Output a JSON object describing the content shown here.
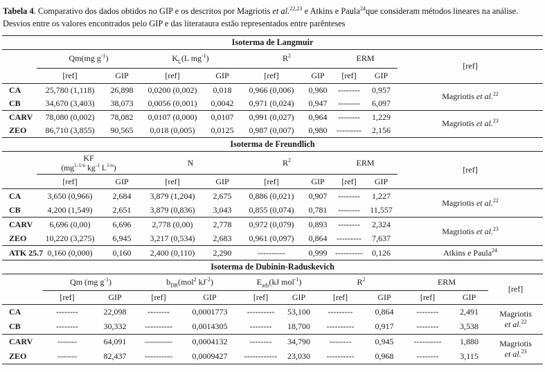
{
  "caption": {
    "segments": [
      {
        "t": "b",
        "v": "Tabela 4"
      },
      {
        "t": "span",
        "v": ". Comparativo dos dados obtidos no GIP e os descritos por Magriotis "
      },
      {
        "t": "i",
        "v": "et al."
      },
      {
        "t": "sup",
        "v": "22,23"
      },
      {
        "t": "span",
        "v": " e Atkins e Paula"
      },
      {
        "t": "sup",
        "v": "24"
      },
      {
        "t": "span",
        "v": "que consideram métodos lineares na análise. Desvios entre os valores encontrados pelo GIP e das literataura estão representados entre parênteses"
      }
    ]
  },
  "labels": {
    "ref": "[ref]",
    "gip": "GIP"
  },
  "sections": {
    "langmuir": {
      "title": "Isoterma de Langmuir",
      "groups": {
        "qm": [
          {
            "t": "span",
            "v": "Qm(mg g"
          },
          {
            "t": "sup",
            "v": "-1"
          },
          {
            "t": "span",
            "v": ")"
          }
        ],
        "kl": [
          {
            "t": "span",
            "v": "K"
          },
          {
            "t": "sub",
            "v": "L"
          },
          {
            "t": "span",
            "v": "(L mg"
          },
          {
            "t": "sup",
            "v": "-1"
          },
          {
            "t": "span",
            "v": ")"
          }
        ],
        "r2": [
          {
            "t": "span",
            "v": "R"
          },
          {
            "t": "sup",
            "v": "2"
          }
        ],
        "erm": [
          {
            "t": "span",
            "v": "ERM"
          }
        ]
      },
      "rows": [
        {
          "label": "CA",
          "cells": [
            "25,780 (1,118)",
            "26,898",
            "0,0200 (0,002)",
            "0,018",
            "0,966 (0,006)",
            "0,960",
            "--------",
            "0,957"
          ]
        },
        {
          "label": "CB",
          "cells": [
            "34,670 (3,403)",
            "38,073",
            "0,0056 (0,001)",
            "0,0042",
            "0,971 (0,024)",
            "0,947",
            "--------",
            "6,097"
          ]
        },
        {
          "label": "CARV",
          "cells": [
            "78,080 (0,002)",
            "78,082",
            "0,0107 (0,000)",
            "0,0107",
            "0,991 (0,027)",
            "0,964",
            "--------",
            "1,229"
          ]
        },
        {
          "label": "ZEO",
          "cells": [
            "86,710 (3,855)",
            "90,565",
            "0,018 (0,005)",
            "0,0125",
            "0,987 (0,007)",
            "0,980",
            "---------",
            "2,156"
          ]
        }
      ],
      "refs": [
        {
          "segments": [
            {
              "t": "span",
              "v": "Magriotis "
            },
            {
              "t": "i",
              "v": "et al."
            },
            {
              "t": "sup",
              "v": "22"
            }
          ]
        },
        {
          "segments": [
            {
              "t": "span",
              "v": "Magriotis "
            },
            {
              "t": "i",
              "v": "et al."
            },
            {
              "t": "sup",
              "v": "23"
            }
          ]
        }
      ]
    },
    "freundlich": {
      "title": "Isoterma de Freundlich",
      "groups": {
        "kf_line1": "KF",
        "kf_line2": [
          {
            "t": "span",
            "v": "(mg"
          },
          {
            "t": "sup",
            "v": "1-1/n"
          },
          {
            "t": "span",
            "v": " kg"
          },
          {
            "t": "sup",
            "v": "-1"
          },
          {
            "t": "span",
            "v": " L"
          },
          {
            "t": "sup",
            "v": "1/n"
          },
          {
            "t": "span",
            "v": ")"
          }
        ],
        "n": [
          {
            "t": "span",
            "v": "N"
          }
        ],
        "r2": [
          {
            "t": "span",
            "v": "R"
          },
          {
            "t": "sup",
            "v": "2"
          }
        ],
        "erm": [
          {
            "t": "span",
            "v": "ERM"
          }
        ]
      },
      "rows": [
        {
          "label": "CA",
          "cells": [
            "3,650 (0,966)",
            "2,684",
            "3,879 (1,204)",
            "2,675",
            "0,886 (0,021)",
            "0,907",
            "--------",
            "1,227"
          ]
        },
        {
          "label": "CB",
          "cells": [
            "4,200 (1,549)",
            "2,651",
            "3,879 (0,836)",
            "3,043",
            "0,855 (0,074)",
            "0,781",
            "--------",
            "11,557"
          ]
        },
        {
          "label": "CARV",
          "cells": [
            "6,696 (0,00)",
            "6,696",
            "2,778 (0,00)",
            "2,778",
            "0,972 (0,079)",
            "0,893",
            "--------",
            "2,324"
          ]
        },
        {
          "label": "ZEO",
          "cells": [
            "10,220 (3,275)",
            "6,945",
            "3,217 (0,534)",
            "2,683",
            "0,961 (0,097)",
            "0,864",
            "---------",
            "7,637"
          ]
        },
        {
          "label": "ATK 25.7",
          "cells": [
            "0,160 (0,000)",
            "0,160",
            "2,400 (0,110)",
            "2,290",
            "----------",
            "0,999",
            "----------",
            "0,126"
          ]
        }
      ],
      "refs": [
        {
          "segments": [
            {
              "t": "span",
              "v": "Magriotis "
            },
            {
              "t": "i",
              "v": "et al."
            },
            {
              "t": "sup",
              "v": "22"
            }
          ]
        },
        {
          "segments": [
            {
              "t": "span",
              "v": "Magriotis "
            },
            {
              "t": "i",
              "v": "et al."
            },
            {
              "t": "sup",
              "v": "23"
            }
          ]
        },
        {
          "segments": [
            {
              "t": "span",
              "v": "Atkins e Paula"
            },
            {
              "t": "sup",
              "v": "24"
            }
          ]
        }
      ]
    },
    "dr": {
      "title": "Isoterma de Dubinin-Raduskevich",
      "groups": {
        "qm": [
          {
            "t": "span",
            "v": "Qm (mg g"
          },
          {
            "t": "sup",
            "v": "-1"
          },
          {
            "t": "span",
            "v": ")"
          }
        ],
        "bdr": [
          {
            "t": "span",
            "v": "b"
          },
          {
            "t": "sub",
            "v": "DR"
          },
          {
            "t": "span",
            "v": "(mol"
          },
          {
            "t": "sup",
            "v": "2"
          },
          {
            "t": "span",
            "v": " kJ"
          },
          {
            "t": "sup",
            "v": "-2"
          },
          {
            "t": "span",
            "v": ")"
          }
        ],
        "eads": [
          {
            "t": "span",
            "v": "E"
          },
          {
            "t": "sub",
            "v": "ads"
          },
          {
            "t": "span",
            "v": "(kJ mol"
          },
          {
            "t": "sup",
            "v": "-1"
          },
          {
            "t": "span",
            "v": ")"
          }
        ],
        "r2": [
          {
            "t": "span",
            "v": "R"
          },
          {
            "t": "sup",
            "v": "2"
          }
        ],
        "erm": [
          {
            "t": "span",
            "v": "ERM"
          }
        ]
      },
      "rows": [
        {
          "label": "CA",
          "cells": [
            "--------",
            "22,098",
            "--------",
            "0,0001773",
            "----------",
            "53,100",
            "---------",
            "0,864",
            "--------",
            "2,491"
          ]
        },
        {
          "label": "CB",
          "cells": [
            "--------",
            "30,332",
            "----------",
            "0,0014305",
            "--------",
            "18,700",
            "----------",
            "0,917",
            "--------",
            "3,538"
          ]
        },
        {
          "label": "CARV",
          "cells": [
            "-------",
            "64,091",
            "----------",
            "0,0004132",
            "--------",
            "34,790",
            "--------",
            "0,945",
            "----------",
            "1,880"
          ]
        },
        {
          "label": "ZEO",
          "cells": [
            "-------",
            "82,437",
            "----------",
            "0,0009427",
            "------------",
            "23,030",
            "----------",
            "0,968",
            "--------",
            "3,115"
          ]
        }
      ],
      "refs": [
        {
          "segments": [
            {
              "t": "span",
              "v": "Magriotis"
            },
            {
              "t": "br"
            },
            {
              "t": "i",
              "v": "et al."
            },
            {
              "t": "sup",
              "v": "22"
            }
          ]
        },
        {
          "segments": [
            {
              "t": "span",
              "v": "Magriotis"
            },
            {
              "t": "br"
            },
            {
              "t": "i",
              "v": "et al."
            },
            {
              "t": "sup",
              "v": "23"
            }
          ]
        }
      ]
    }
  }
}
